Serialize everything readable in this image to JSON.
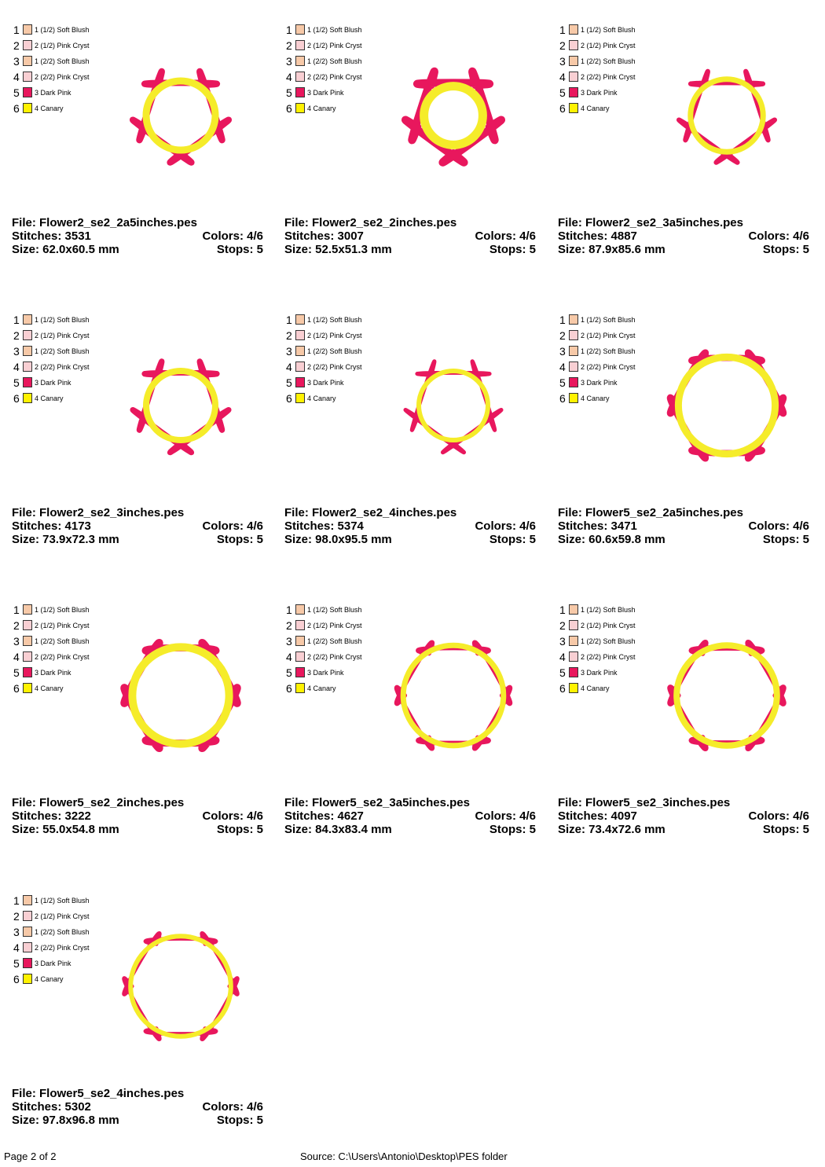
{
  "colors": {
    "petal": "#e8175d",
    "center": "#f5ec2a"
  },
  "legend": [
    {
      "num": "1",
      "name": "1 (1/2) Soft Blush",
      "color": "#f7c9a8"
    },
    {
      "num": "2",
      "name": "2 (1/2) Pink Cryst",
      "color": "#f9cfd3"
    },
    {
      "num": "3",
      "name": "1 (2/2) Soft Blush",
      "color": "#f7c9a8"
    },
    {
      "num": "4",
      "name": "2 (2/2) Pink Cryst",
      "color": "#f9cfd3"
    },
    {
      "num": "5",
      "name": "3 Dark Pink",
      "color": "#e8175d"
    },
    {
      "num": "6",
      "name": "4 Canary",
      "color": "#fff200"
    }
  ],
  "designs": [
    {
      "file": "File: Flower2_se2_2a5inches.pes",
      "stitches": "Stitches: 3531",
      "colors": "Colors: 4/6",
      "size": "Size: 62.0x60.5 mm",
      "stops": "Stops: 5",
      "shape": "flower2",
      "center_r": 0.2,
      "stroke": 8
    },
    {
      "file": "File: Flower2_se2_2inches.pes",
      "stitches": "Stitches: 3007",
      "colors": "Colors: 4/6",
      "size": "Size: 52.5x51.3 mm",
      "stops": "Stops: 5",
      "shape": "flower2",
      "center_r": 0.17,
      "stroke": 10
    },
    {
      "file": "File: Flower2_se2_3a5inches.pes",
      "stitches": "Stitches: 4887",
      "colors": "Colors: 4/6",
      "size": "Size: 87.9x85.6 mm",
      "stops": "Stops: 5",
      "shape": "flower2",
      "center_r": 0.21,
      "stroke": 6
    },
    {
      "file": "File: Flower2_se2_3inches.pes",
      "stitches": "Stitches: 4173",
      "colors": "Colors: 4/6",
      "size": "Size: 73.9x72.3 mm",
      "stops": "Stops: 5",
      "shape": "flower2",
      "center_r": 0.2,
      "stroke": 7
    },
    {
      "file": "File: Flower2_se2_4inches.pes",
      "stitches": "Stitches: 5374",
      "colors": "Colors: 4/6",
      "size": "Size: 98.0x95.5 mm",
      "stops": "Stops: 5",
      "shape": "flower2",
      "center_r": 0.2,
      "stroke": 5
    },
    {
      "file": "File: Flower5_se2_2a5inches.pes",
      "stitches": "Stitches: 3471",
      "colors": "Colors: 4/6",
      "size": "Size: 60.6x59.8 mm",
      "stops": "Stops: 5",
      "shape": "flower5",
      "center_r": 0.28,
      "stroke": 8
    },
    {
      "file": "File: Flower5_se2_2inches.pes",
      "stitches": "Stitches: 3222",
      "colors": "Colors: 4/6",
      "size": "Size: 55.0x54.8 mm",
      "stops": "Stops: 5",
      "shape": "flower5",
      "center_r": 0.28,
      "stroke": 9
    },
    {
      "file": "File: Flower5_se2_3a5inches.pes",
      "stitches": "Stitches: 4627",
      "colors": "Colors: 4/6",
      "size": "Size: 84.3x83.4 mm",
      "stops": "Stops: 5",
      "shape": "flower5",
      "center_r": 0.29,
      "stroke": 6
    },
    {
      "file": "File: Flower5_se2_3inches.pes",
      "stitches": "Stitches: 4097",
      "colors": "Colors: 4/6",
      "size": "Size: 73.4x72.6 mm",
      "stops": "Stops: 5",
      "shape": "flower5",
      "center_r": 0.29,
      "stroke": 7
    },
    {
      "file": "File: Flower5_se2_4inches.pes",
      "stitches": "Stitches: 5302",
      "colors": "Colors: 4/6",
      "size": "Size: 97.8x96.8 mm",
      "stops": "Stops: 5",
      "shape": "flower5",
      "center_r": 0.29,
      "stroke": 5
    }
  ],
  "footer": {
    "page": "Page 2 of 2",
    "source": "Source: C:\\Users\\Antonio\\Desktop\\PES folder"
  }
}
